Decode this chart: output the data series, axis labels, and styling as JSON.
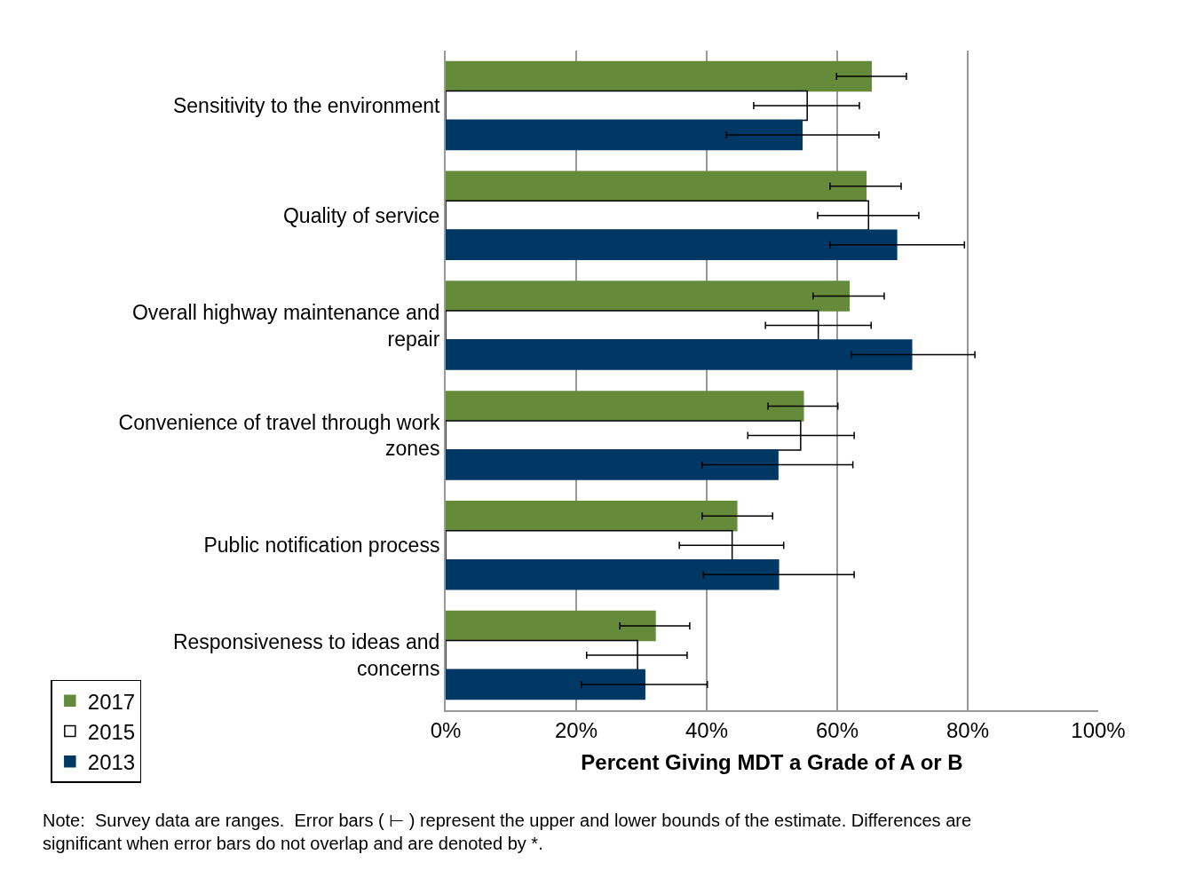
{
  "chart_data": {
    "type": "bar",
    "orientation": "horizontal",
    "xlabel": "Percent Giving MDT a Grade of A or B",
    "categories": [
      "Sensitivity to the environment",
      "Quality of service",
      "Overall highway maintenance and repair",
      "Convenience of travel through work zones",
      "Public notification process",
      "Responsiveness to ideas and concerns"
    ],
    "series": [
      {
        "name": "2017",
        "color": "#658a3a",
        "values": [
          65.2,
          64.4,
          61.8,
          54.8,
          44.6,
          32.1
        ],
        "errors": [
          [
            59.9,
            70.6
          ],
          [
            58.9,
            69.8
          ],
          [
            56.3,
            67.2
          ],
          [
            49.4,
            60.1
          ],
          [
            39.3,
            50.1
          ],
          [
            26.7,
            37.4
          ]
        ]
      },
      {
        "name": "2015",
        "color": "#ffffff",
        "values": [
          55.4,
          64.8,
          57.1,
          54.4,
          43.9,
          29.4
        ],
        "errors": [
          [
            47.2,
            63.4
          ],
          [
            57.0,
            72.5
          ],
          [
            49.0,
            65.2
          ],
          [
            46.3,
            62.6
          ],
          [
            35.8,
            51.8
          ],
          [
            21.6,
            37.0
          ]
        ]
      },
      {
        "name": "2013",
        "color": "#003865",
        "values": [
          54.6,
          69.1,
          71.4,
          50.9,
          51.0,
          30.5
        ],
        "errors": [
          [
            43.0,
            66.4
          ],
          [
            58.9,
            79.5
          ],
          [
            62.2,
            81.1
          ],
          [
            39.3,
            62.4
          ],
          [
            39.5,
            62.6
          ],
          [
            20.8,
            40.1
          ]
        ]
      }
    ],
    "xlim": [
      0,
      100
    ],
    "xticks": [
      {
        "value": 0,
        "label": "0%"
      },
      {
        "value": 20,
        "label": "20%"
      },
      {
        "value": 40,
        "label": "40%"
      },
      {
        "value": 60,
        "label": "60%"
      },
      {
        "value": 80,
        "label": "80%"
      },
      {
        "value": 100,
        "label": "100%"
      }
    ],
    "grid": "x",
    "legend": "bottom left",
    "annotations": [
      "Note:  Survey data are ranges.  Error bars ( ⊢ ) represent the upper and lower bounds of the estimate. Differences are significant when error bars do not overlap and are denoted by *."
    ]
  }
}
